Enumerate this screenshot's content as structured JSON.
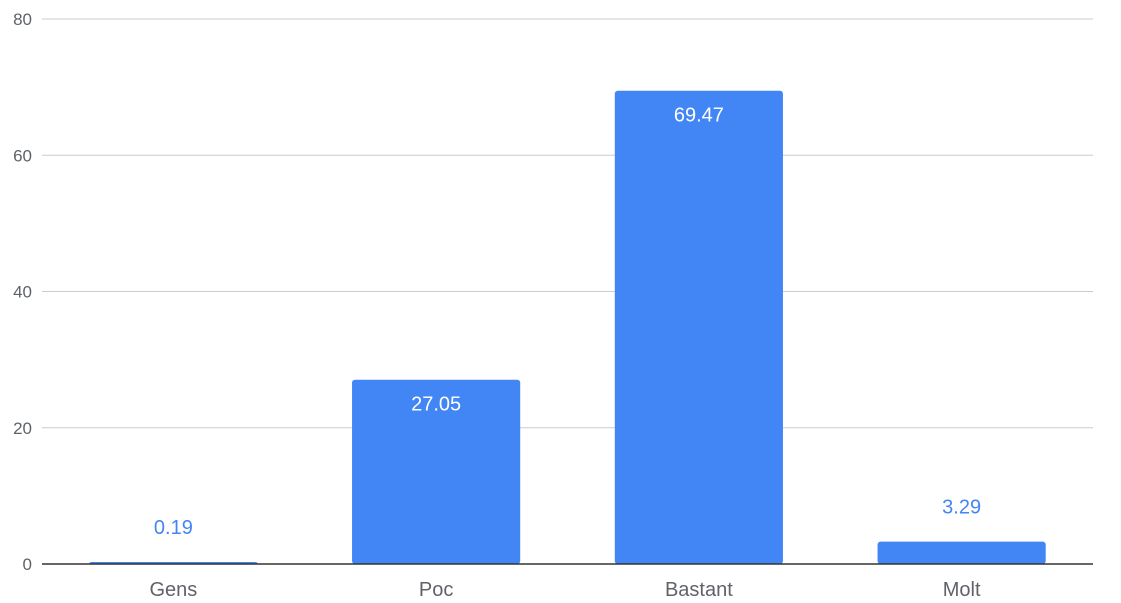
{
  "chart_data": {
    "type": "bar",
    "title": "",
    "xlabel": "",
    "ylabel": "",
    "categories": [
      "Gens",
      "Poc",
      "Bastant",
      "Molt"
    ],
    "values": [
      0.19,
      27.05,
      69.47,
      3.29
    ],
    "value_labels": [
      "0.19",
      "27.05",
      "69.47",
      "3.29"
    ],
    "ylim": [
      0,
      80
    ],
    "yticks": [
      0,
      20,
      40,
      60,
      80
    ],
    "grid": true,
    "legend": "none",
    "colors": {
      "bar": "#4285f4",
      "label_inside": "#ffffff",
      "label_outside": "#4285f4",
      "gridline": "#cccccc",
      "axis": "#333333"
    }
  }
}
